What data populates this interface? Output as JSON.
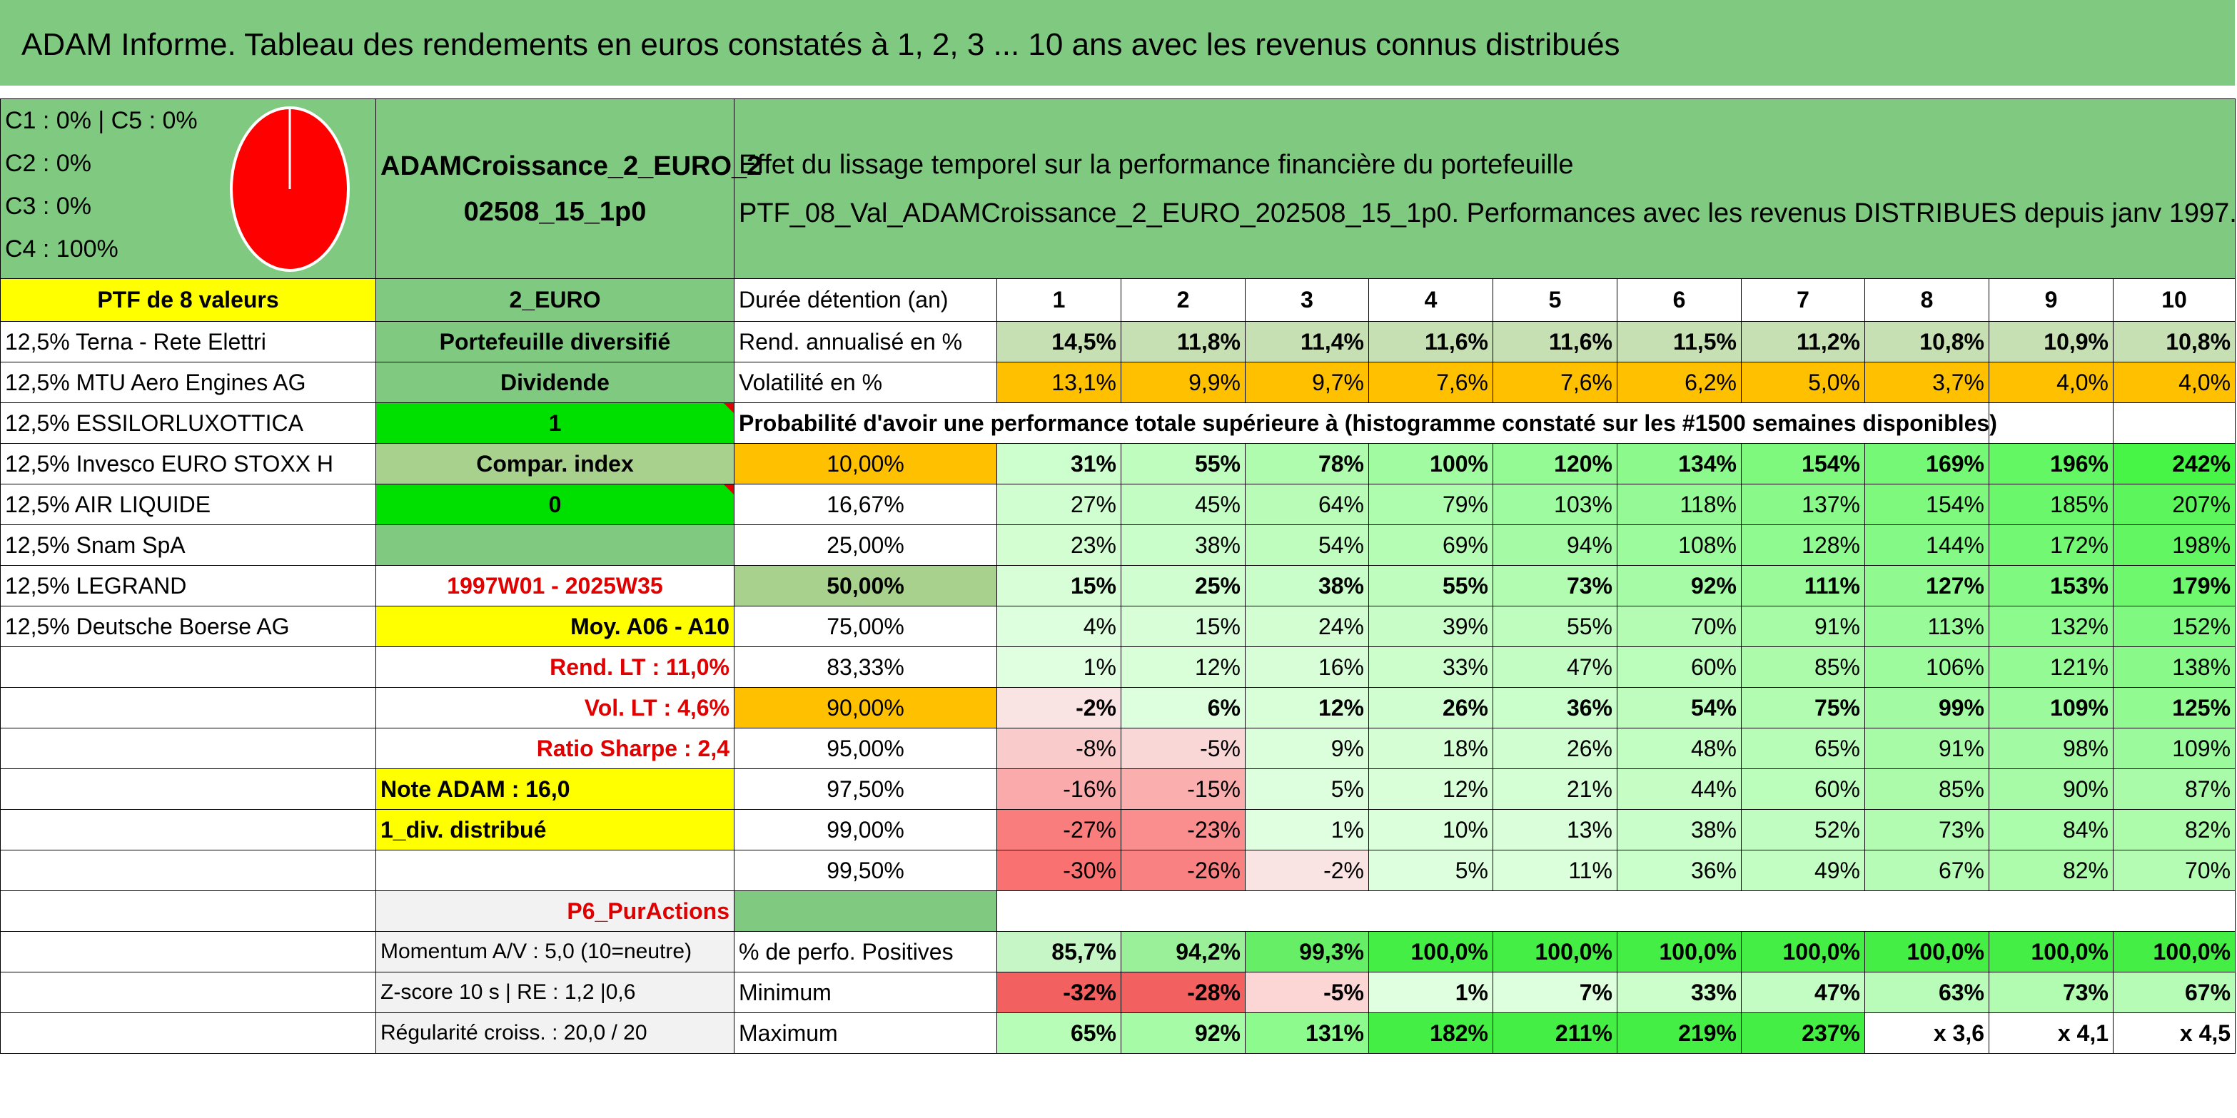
{
  "title": "ADAM Informe. Tableau des rendements en euros constatés à 1, 2, 3 ... 10 ans avec les revenus connus distribués",
  "legend": [
    "C1 : 0% | C5 : 0%",
    "C2 : 0%",
    "C3 : 0%",
    "C4 : 100%"
  ],
  "pie_color": "#ff0000",
  "fund_name_line1": "ADAMCroissance_2_EURO_2",
  "fund_name_line2": "02508_15_1p0",
  "desc_line1": "Effet du lissage temporel sur la performance financière du portefeuille",
  "desc_line2": "PTF_08_Val_ADAMCroissance_2_EURO_202508_15_1p0. Performances avec les revenus DISTRIBUES depuis janv 1997.",
  "ptf_label": "PTF de 8 valeurs",
  "currency": "2_EURO",
  "holdings": [
    "12,5% Terna - Rete Elettri",
    "12,5% MTU Aero Engines AG",
    "12,5% ESSILORLUXOTTICA",
    "12,5% Invesco EURO STOXX H",
    "12,5% AIR LIQUIDE",
    "12,5% Snam SpA",
    "12,5% LEGRAND",
    "12,5% Deutsche Boerse AG"
  ],
  "info": {
    "type": "Portefeuille diversifié",
    "dividende_label": "Dividende",
    "dividende_value": "1",
    "compar_label": "Compar. index",
    "compar_value": "0",
    "period": "1997W01 - 2025W35",
    "moy": "Moy. A06 - A10",
    "rend_lt": "Rend. LT : 11,0%",
    "vol_lt": "Vol. LT : 4,6%",
    "sharpe": "Ratio Sharpe : 2,4",
    "note": "Note ADAM : 16,0",
    "div_distrib": "1_div. distribué",
    "p6": "P6_PurActions",
    "momentum": "Momentum A/V : 5,0 (10=neutre)",
    "zscore": "Z-score 10 s | RE : 1,2 |0,6",
    "regularite": "Régularité croiss. : 20,0 / 20"
  },
  "durations_label": "Durée détention (an)",
  "durations": [
    "1",
    "2",
    "3",
    "4",
    "5",
    "6",
    "7",
    "8",
    "9",
    "10"
  ],
  "rend_label": "Rend. annualisé en %",
  "rend": [
    "14,5%",
    "11,8%",
    "11,4%",
    "11,6%",
    "11,6%",
    "11,5%",
    "11,2%",
    "10,8%",
    "10,9%",
    "10,8%"
  ],
  "vol_label": "Volatilité en %",
  "vol": [
    "13,1%",
    "9,9%",
    "9,7%",
    "7,6%",
    "7,6%",
    "6,2%",
    "5,0%",
    "3,7%",
    "4,0%",
    "4,0%"
  ],
  "prob_label": "Probabilité d'avoir une performance totale supérieure à (histogramme constaté sur les #1500 semaines disponibles)",
  "prob_rows": [
    {
      "p": "10,00%",
      "v": [
        "31%",
        "55%",
        "78%",
        "100%",
        "120%",
        "134%",
        "154%",
        "169%",
        "196%",
        "242%"
      ]
    },
    {
      "p": "16,67%",
      "v": [
        "27%",
        "45%",
        "64%",
        "79%",
        "103%",
        "118%",
        "137%",
        "154%",
        "185%",
        "207%"
      ]
    },
    {
      "p": "25,00%",
      "v": [
        "23%",
        "38%",
        "54%",
        "69%",
        "94%",
        "108%",
        "128%",
        "144%",
        "172%",
        "198%"
      ]
    },
    {
      "p": "50,00%",
      "v": [
        "15%",
        "25%",
        "38%",
        "55%",
        "73%",
        "92%",
        "111%",
        "127%",
        "153%",
        "179%"
      ]
    },
    {
      "p": "75,00%",
      "v": [
        "4%",
        "15%",
        "24%",
        "39%",
        "55%",
        "70%",
        "91%",
        "113%",
        "132%",
        "152%"
      ]
    },
    {
      "p": "83,33%",
      "v": [
        "1%",
        "12%",
        "16%",
        "33%",
        "47%",
        "60%",
        "85%",
        "106%",
        "121%",
        "138%"
      ]
    },
    {
      "p": "90,00%",
      "v": [
        "-2%",
        "6%",
        "12%",
        "26%",
        "36%",
        "54%",
        "75%",
        "99%",
        "109%",
        "125%"
      ]
    },
    {
      "p": "95,00%",
      "v": [
        "-8%",
        "-5%",
        "9%",
        "18%",
        "26%",
        "48%",
        "65%",
        "91%",
        "98%",
        "109%"
      ]
    },
    {
      "p": "97,50%",
      "v": [
        "-16%",
        "-15%",
        "5%",
        "12%",
        "21%",
        "44%",
        "60%",
        "85%",
        "90%",
        "87%"
      ]
    },
    {
      "p": "99,00%",
      "v": [
        "-27%",
        "-23%",
        "1%",
        "10%",
        "13%",
        "38%",
        "52%",
        "73%",
        "84%",
        "82%"
      ]
    },
    {
      "p": "99,50%",
      "v": [
        "-30%",
        "-26%",
        "-2%",
        "5%",
        "11%",
        "36%",
        "49%",
        "67%",
        "82%",
        "70%"
      ]
    }
  ],
  "pos_label": "% de perfo. Positives",
  "pos": [
    "85,7%",
    "94,2%",
    "99,3%",
    "100,0%",
    "100,0%",
    "100,0%",
    "100,0%",
    "100,0%",
    "100,0%",
    "100,0%"
  ],
  "min_label": "Minimum",
  "min": [
    "-32%",
    "-28%",
    "-5%",
    "1%",
    "7%",
    "33%",
    "47%",
    "63%",
    "73%",
    "67%"
  ],
  "max_label": "Maximum",
  "max": [
    "65%",
    "92%",
    "131%",
    "182%",
    "211%",
    "219%",
    "237%",
    "x 3,6",
    "x 4,1",
    "x 4,5"
  ]
}
